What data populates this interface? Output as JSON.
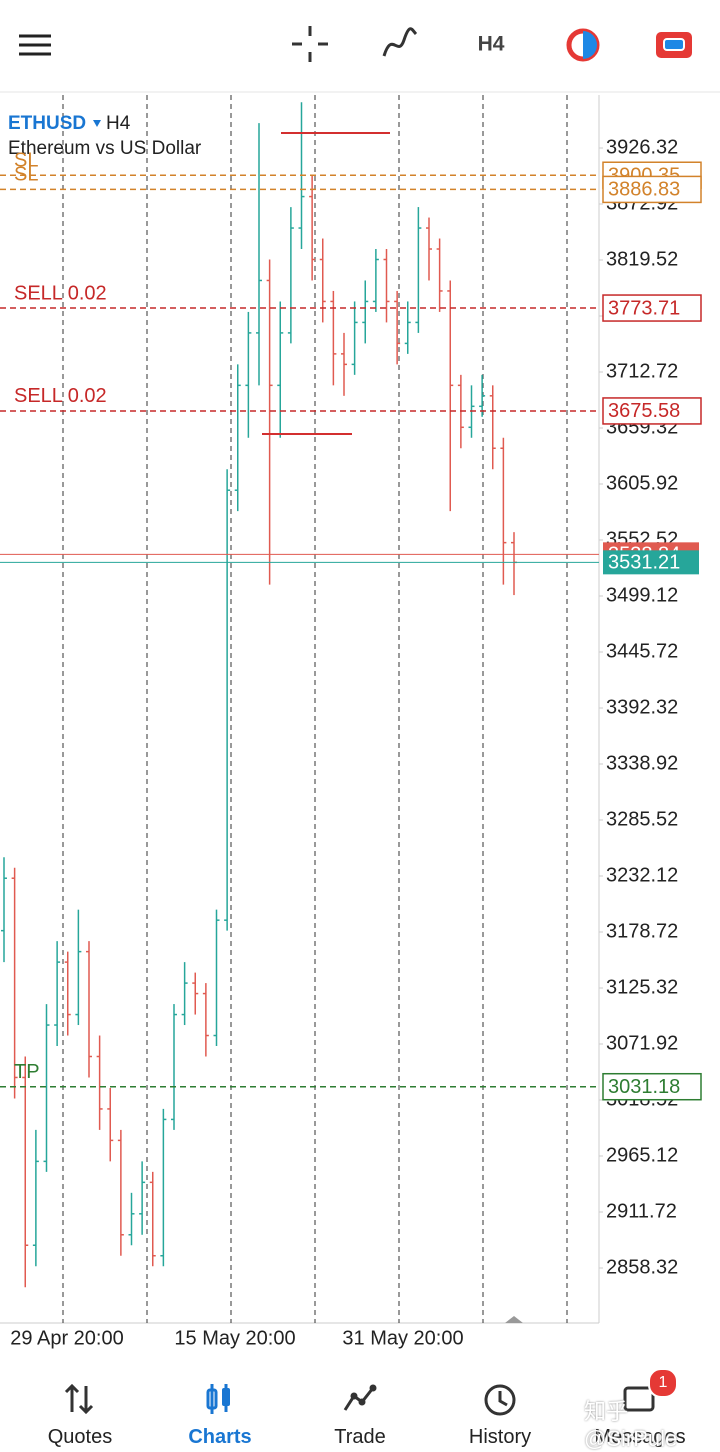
{
  "toolbar": {
    "timeframe": "H4"
  },
  "chart_data": {
    "type": "candlestick",
    "symbol": "ETHUSD",
    "timeframe": "H4",
    "subtitle": "Ethereum vs US Dollar",
    "up_color": "#26a69a",
    "down_color": "#e05a50",
    "ohlc": [
      [
        3180,
        3250,
        3150,
        3230
      ],
      [
        3230,
        3240,
        3020,
        3040
      ],
      [
        3040,
        3060,
        2840,
        2880
      ],
      [
        2880,
        2990,
        2860,
        2960
      ],
      [
        2960,
        3110,
        2950,
        3090
      ],
      [
        3090,
        3170,
        3070,
        3150
      ],
      [
        3150,
        3160,
        3080,
        3100
      ],
      [
        3100,
        3200,
        3090,
        3160
      ],
      [
        3160,
        3170,
        3040,
        3060
      ],
      [
        3060,
        3080,
        2990,
        3010
      ],
      [
        3010,
        3030,
        2960,
        2980
      ],
      [
        2980,
        2990,
        2870,
        2890
      ],
      [
        2890,
        2930,
        2880,
        2910
      ],
      [
        2910,
        2960,
        2890,
        2940
      ],
      [
        2940,
        2950,
        2860,
        2870
      ],
      [
        2870,
        3010,
        2860,
        3000
      ],
      [
        3000,
        3110,
        2990,
        3100
      ],
      [
        3100,
        3150,
        3090,
        3130
      ],
      [
        3130,
        3140,
        3100,
        3120
      ],
      [
        3120,
        3130,
        3060,
        3080
      ],
      [
        3080,
        3200,
        3070,
        3190
      ],
      [
        3190,
        3620,
        3180,
        3600
      ],
      [
        3600,
        3720,
        3580,
        3700
      ],
      [
        3700,
        3770,
        3650,
        3750
      ],
      [
        3750,
        3950,
        3700,
        3800
      ],
      [
        3800,
        3820,
        3510,
        3700
      ],
      [
        3700,
        3780,
        3650,
        3750
      ],
      [
        3750,
        3870,
        3740,
        3850
      ],
      [
        3850,
        3970,
        3830,
        3880
      ],
      [
        3880,
        3900,
        3800,
        3820
      ],
      [
        3820,
        3840,
        3760,
        3780
      ],
      [
        3780,
        3790,
        3700,
        3730
      ],
      [
        3730,
        3750,
        3690,
        3720
      ],
      [
        3720,
        3780,
        3710,
        3760
      ],
      [
        3760,
        3800,
        3740,
        3780
      ],
      [
        3780,
        3830,
        3770,
        3820
      ],
      [
        3820,
        3830,
        3760,
        3780
      ],
      [
        3780,
        3790,
        3720,
        3740
      ],
      [
        3740,
        3780,
        3730,
        3760
      ],
      [
        3760,
        3870,
        3750,
        3850
      ],
      [
        3850,
        3860,
        3800,
        3830
      ],
      [
        3830,
        3840,
        3770,
        3790
      ],
      [
        3790,
        3800,
        3580,
        3700
      ],
      [
        3700,
        3710,
        3640,
        3660
      ],
      [
        3660,
        3700,
        3650,
        3680
      ],
      [
        3680,
        3710,
        3670,
        3690
      ],
      [
        3690,
        3700,
        3620,
        3640
      ],
      [
        3640,
        3650,
        3510,
        3550
      ],
      [
        3550,
        3560,
        3500,
        3531.21
      ]
    ],
    "ylim": [
      2805.87,
      3976.86
    ],
    "yticks": [
      3926.32,
      3872.92,
      3819.52,
      3766.12,
      3712.72,
      3659.32,
      3605.92,
      3552.52,
      3499.12,
      3445.72,
      3392.32,
      3338.92,
      3285.52,
      3232.12,
      3178.72,
      3125.32,
      3071.92,
      3018.52,
      2965.12,
      2911.72,
      2858.32
    ],
    "x_labels": [
      "29 Apr 20:00",
      "15 May 20:00",
      "31 May 20:00"
    ],
    "grid": true,
    "levels": [
      {
        "label": "SL",
        "value": 3900.35,
        "color": "#d2822a"
      },
      {
        "label": "SL",
        "value": 3886.83,
        "color": "#d2822a"
      },
      {
        "label": "SELL 0.02",
        "value": 3773.71,
        "color": "#c62828"
      },
      {
        "label": "SELL 0.02",
        "value": 3675.58,
        "color": "#c62828"
      },
      {
        "label": "TP",
        "value": 3031.18,
        "color": "#2e7d32"
      }
    ],
    "bid": 3538.84,
    "ask": 3531.21,
    "bid_color": "#e05a50",
    "ask_color": "#26a69a"
  },
  "nav": {
    "items": [
      "Quotes",
      "Charts",
      "Trade",
      "History",
      "Messages"
    ],
    "active_index": 1,
    "badge": 1
  },
  "watermark": "知乎 @SirPule"
}
